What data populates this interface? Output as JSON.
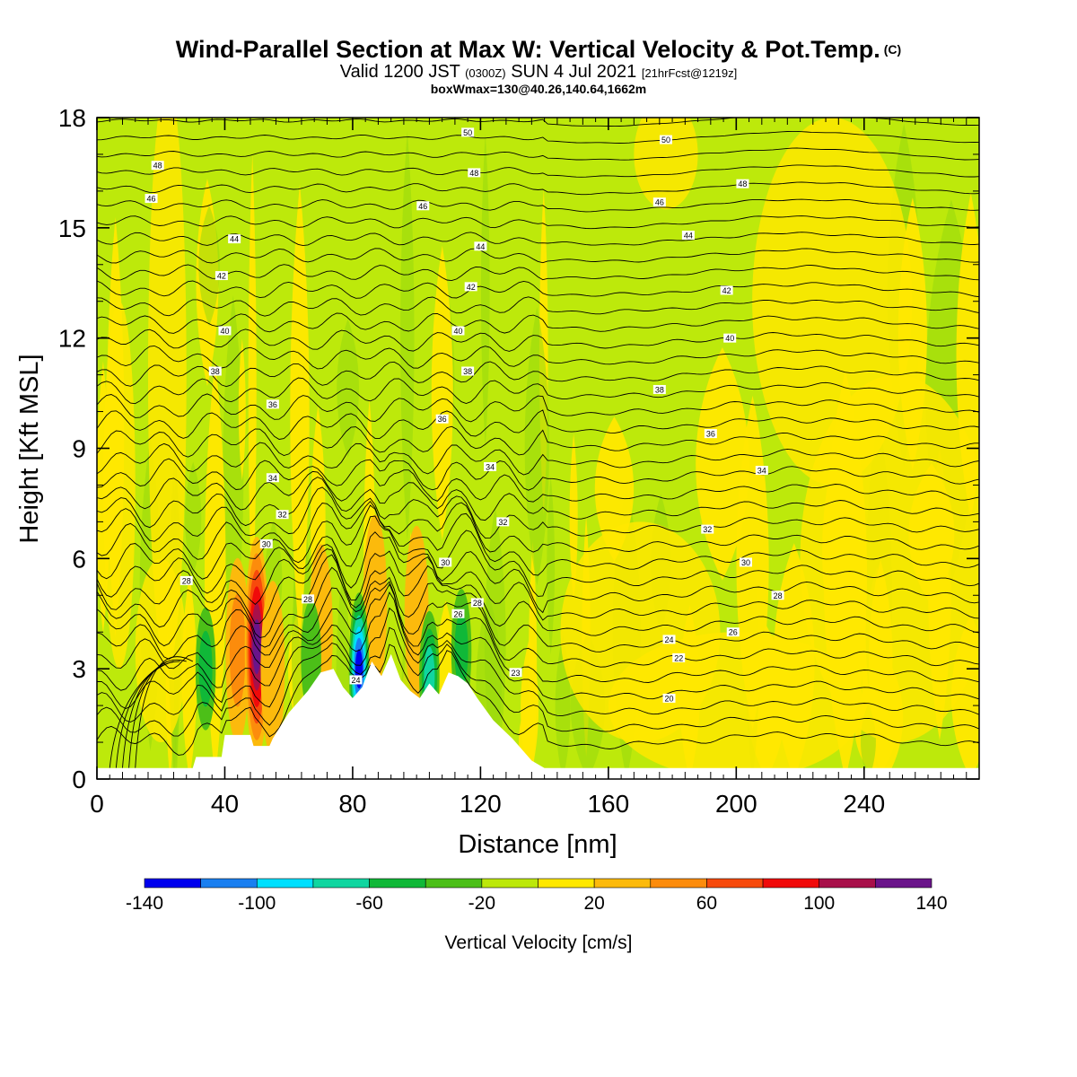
{
  "header": {
    "title": "Wind-Parallel Section at Max W: Vertical Velocity & Pot.Temp.",
    "copyright": "(C)",
    "valid_prefix": "Valid 1200 JST",
    "valid_utc": "(0300Z)",
    "valid_date": "SUN 4 Jul 2021",
    "forecast": "[21hrFcst@1219z]",
    "box_info": "boxWmax=130@40.26,140.64,1662m"
  },
  "chart_data": {
    "type": "heatmap",
    "xlabel": "Distance [nm]",
    "ylabel": "Height [Kft MSL]",
    "xlim": [
      0,
      276
    ],
    "ylim": [
      0,
      18
    ],
    "x_ticks": [
      "0",
      "40",
      "80",
      "120",
      "160",
      "200",
      "240"
    ],
    "y_ticks": [
      "0",
      "3",
      "6",
      "9",
      "12",
      "15",
      "18"
    ],
    "colorbar": {
      "label": "Vertical Velocity [cm/s]",
      "tick_labels": [
        "-140",
        "-100",
        "-60",
        "-20",
        "20",
        "60",
        "100",
        "140"
      ],
      "bounds": [
        -140,
        -120,
        -100,
        -80,
        -60,
        -40,
        -20,
        0,
        20,
        40,
        60,
        80,
        100,
        120,
        140
      ],
      "colors": [
        "#0000ee",
        "#1a7ff0",
        "#00e0ff",
        "#10d6a0",
        "#10b838",
        "#4cbf18",
        "#bce80a",
        "#ffe800",
        "#fcba0c",
        "#fc8c0c",
        "#f74a0c",
        "#f00a0a",
        "#a8104a",
        "#6a148a"
      ]
    },
    "terrain": [
      [
        0,
        0.3
      ],
      [
        30,
        0.3
      ],
      [
        31,
        0.6
      ],
      [
        39,
        0.6
      ],
      [
        40,
        1.2
      ],
      [
        48,
        1.2
      ],
      [
        49,
        0.9
      ],
      [
        54,
        0.9
      ],
      [
        55,
        1.1
      ],
      [
        60,
        1.8
      ],
      [
        66,
        2.4
      ],
      [
        70,
        2.9
      ],
      [
        74,
        3.0
      ],
      [
        77,
        2.5
      ],
      [
        80,
        2.2
      ],
      [
        83,
        2.5
      ],
      [
        86,
        3.2
      ],
      [
        89,
        2.8
      ],
      [
        92,
        3.4
      ],
      [
        95,
        2.7
      ],
      [
        98,
        2.4
      ],
      [
        101,
        2.2
      ],
      [
        104,
        2.6
      ],
      [
        107,
        2.3
      ],
      [
        110,
        2.9
      ],
      [
        113,
        2.8
      ],
      [
        116,
        2.6
      ],
      [
        119,
        2.2
      ],
      [
        124,
        1.6
      ],
      [
        130,
        1.1
      ],
      [
        136,
        0.5
      ],
      [
        140,
        0.3
      ],
      [
        276,
        0.3
      ]
    ],
    "updraft_cores": [
      {
        "x": 44,
        "z": 3.5,
        "w": 40
      },
      {
        "x": 50,
        "z": 3.6,
        "w": 130
      },
      {
        "x": 55,
        "z": 3.0,
        "w": 20
      },
      {
        "x": 70,
        "z": 4.0,
        "w": 30
      },
      {
        "x": 87,
        "z": 4.8,
        "w": 30
      },
      {
        "x": 100,
        "z": 4.5,
        "w": 30
      }
    ],
    "downdraft_cores": [
      {
        "x": 82,
        "z": 3.0,
        "w": -120
      },
      {
        "x": 104,
        "z": 2.8,
        "w": -60
      },
      {
        "x": 114,
        "z": 3.5,
        "w": -40
      },
      {
        "x": 34,
        "z": 3.0,
        "w": -40
      },
      {
        "x": 67,
        "z": 3.3,
        "w": -30
      }
    ],
    "isentrope_labels": [
      {
        "x": 116,
        "z": 17.6,
        "text": "50"
      },
      {
        "x": 178,
        "z": 17.4,
        "text": "50"
      },
      {
        "x": 19,
        "z": 16.7,
        "text": "48"
      },
      {
        "x": 118,
        "z": 16.5,
        "text": "48"
      },
      {
        "x": 202,
        "z": 16.2,
        "text": "48"
      },
      {
        "x": 17,
        "z": 15.8,
        "text": "46"
      },
      {
        "x": 102,
        "z": 15.6,
        "text": "46"
      },
      {
        "x": 176,
        "z": 15.7,
        "text": "46"
      },
      {
        "x": 43,
        "z": 14.7,
        "text": "44"
      },
      {
        "x": 120,
        "z": 14.5,
        "text": "44"
      },
      {
        "x": 185,
        "z": 14.8,
        "text": "44"
      },
      {
        "x": 39,
        "z": 13.7,
        "text": "42"
      },
      {
        "x": 117,
        "z": 13.4,
        "text": "42"
      },
      {
        "x": 197,
        "z": 13.3,
        "text": "42"
      },
      {
        "x": 40,
        "z": 12.2,
        "text": "40"
      },
      {
        "x": 113,
        "z": 12.2,
        "text": "40"
      },
      {
        "x": 198,
        "z": 12.0,
        "text": "40"
      },
      {
        "x": 37,
        "z": 11.1,
        "text": "38"
      },
      {
        "x": 116,
        "z": 11.1,
        "text": "38"
      },
      {
        "x": 176,
        "z": 10.6,
        "text": "38"
      },
      {
        "x": 55,
        "z": 10.2,
        "text": "36"
      },
      {
        "x": 108,
        "z": 9.8,
        "text": "36"
      },
      {
        "x": 192,
        "z": 9.4,
        "text": "36"
      },
      {
        "x": 123,
        "z": 8.5,
        "text": "34"
      },
      {
        "x": 208,
        "z": 8.4,
        "text": "34"
      },
      {
        "x": 55,
        "z": 8.2,
        "text": "34"
      },
      {
        "x": 58,
        "z": 7.2,
        "text": "32"
      },
      {
        "x": 127,
        "z": 7.0,
        "text": "32"
      },
      {
        "x": 191,
        "z": 6.8,
        "text": "32"
      },
      {
        "x": 53,
        "z": 6.4,
        "text": "30"
      },
      {
        "x": 109,
        "z": 5.9,
        "text": "30"
      },
      {
        "x": 203,
        "z": 5.9,
        "text": "30"
      },
      {
        "x": 28,
        "z": 5.4,
        "text": "28"
      },
      {
        "x": 66,
        "z": 4.9,
        "text": "28"
      },
      {
        "x": 119,
        "z": 4.8,
        "text": "28"
      },
      {
        "x": 213,
        "z": 5.0,
        "text": "28"
      },
      {
        "x": 113,
        "z": 4.5,
        "text": "26"
      },
      {
        "x": 199,
        "z": 4.0,
        "text": "26"
      },
      {
        "x": 179,
        "z": 3.8,
        "text": "24"
      },
      {
        "x": 182,
        "z": 3.3,
        "text": "22"
      },
      {
        "x": 81,
        "z": 2.7,
        "text": "24"
      },
      {
        "x": 131,
        "z": 2.9,
        "text": "23"
      },
      {
        "x": 179,
        "z": 2.2,
        "text": "20"
      }
    ]
  }
}
